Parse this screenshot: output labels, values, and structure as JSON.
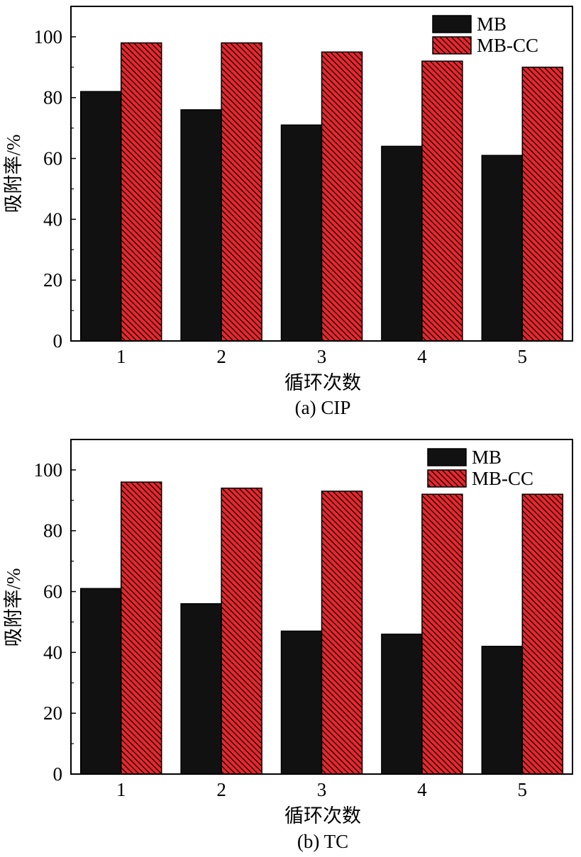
{
  "colors": {
    "mb": "#111111",
    "mbcc": "#e8262d",
    "hatch": "#000000",
    "axis": "#000000"
  },
  "chart_data": [
    {
      "type": "bar",
      "caption": "(a) CIP",
      "xlabel": "循环次数",
      "ylabel": "吸附率/%",
      "categories": [
        "1",
        "2",
        "3",
        "4",
        "5"
      ],
      "ylim": [
        0,
        110
      ],
      "yticks": [
        0,
        20,
        40,
        60,
        80,
        100
      ],
      "legend_position": "top-right",
      "series": [
        {
          "name": "MB",
          "values": [
            82,
            76,
            71,
            64,
            61
          ]
        },
        {
          "name": "MB-CC",
          "values": [
            98,
            98,
            95,
            92,
            90
          ]
        }
      ]
    },
    {
      "type": "bar",
      "caption": "(b) TC",
      "xlabel": "循环次数",
      "ylabel": "吸附率/%",
      "categories": [
        "1",
        "2",
        "3",
        "4",
        "5"
      ],
      "ylim": [
        0,
        110
      ],
      "yticks": [
        0,
        20,
        40,
        60,
        80,
        100
      ],
      "legend_position": "top-right",
      "series": [
        {
          "name": "MB",
          "values": [
            61,
            56,
            47,
            46,
            42
          ]
        },
        {
          "name": "MB-CC",
          "values": [
            96,
            94,
            93,
            92,
            92
          ]
        }
      ]
    }
  ]
}
